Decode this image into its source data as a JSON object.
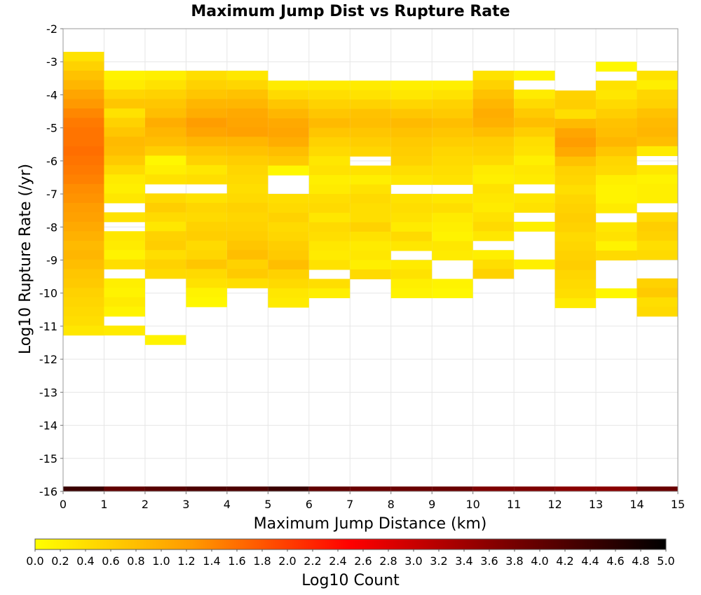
{
  "chart_data": {
    "type": "heatmap",
    "title": "Maximum Jump Dist vs Rupture Rate",
    "xlabel": "Maximum Jump Distance (km)",
    "ylabel": "Log10 Rupture Rate (/yr)",
    "xlim": [
      0,
      15
    ],
    "ylim": [
      -16,
      -2
    ],
    "x_ticks": [
      "0",
      "1",
      "2",
      "3",
      "4",
      "5",
      "6",
      "7",
      "8",
      "9",
      "10",
      "11",
      "12",
      "13",
      "14",
      "15"
    ],
    "y_ticks": [
      "-2",
      "-3",
      "-4",
      "-5",
      "-6",
      "-7",
      "-8",
      "-9",
      "-10",
      "-11",
      "-12",
      "-13",
      "-14",
      "-15",
      "-16"
    ],
    "grid": true,
    "bin_width_x": 1,
    "bin_height_y": 0.2857,
    "columns": [
      {
        "x": 0,
        "y_top": -2.7,
        "values": [
          0.35,
          0.55,
          0.75,
          0.9,
          1.1,
          1.25,
          1.4,
          1.5,
          1.55,
          1.55,
          1.6,
          1.55,
          1.5,
          1.45,
          1.35,
          1.3,
          1.2,
          1.15,
          1.05,
          0.95,
          0.85,
          0.9,
          0.8,
          0.7,
          0.65,
          0.55,
          0.5,
          0.45,
          0.4,
          0.3
        ]
      },
      {
        "x": 1,
        "y_top": -3.27,
        "values": [
          0.15,
          0.25,
          0.5,
          0.7,
          0.35,
          0.55,
          0.7,
          0.85,
          0.8,
          0.65,
          0.45,
          0.25,
          0.2,
          0.3,
          null,
          0.35,
          null,
          0.3,
          0.25,
          0.15,
          0.4,
          null,
          0.2,
          0.15,
          0.25,
          0.15,
          null,
          0.25
        ]
      },
      {
        "x": 2,
        "y_top": -3.27,
        "values": [
          0.2,
          0.35,
          0.55,
          0.7,
          0.8,
          1.0,
          0.9,
          0.8,
          0.6,
          0.1,
          0.2,
          0.35,
          null,
          0.45,
          0.6,
          0.45,
          0.3,
          0.55,
          0.6,
          0.4,
          0.55,
          0.45,
          null,
          null,
          null,
          null,
          null,
          null,
          0.15
        ]
      },
      {
        "x": 3,
        "y_top": -3.27,
        "values": [
          0.4,
          0.55,
          0.7,
          0.9,
          1.0,
          1.2,
          1.1,
          0.9,
          0.7,
          0.55,
          0.3,
          0.4,
          null,
          0.35,
          0.5,
          0.45,
          0.55,
          0.6,
          0.45,
          0.5,
          0.7,
          0.45,
          0.35,
          0.15,
          0.1
        ]
      },
      {
        "x": 4,
        "y_top": -3.27,
        "values": [
          0.3,
          0.5,
          0.75,
          0.9,
          1.05,
          1.1,
          1.15,
          0.9,
          0.75,
          0.6,
          0.5,
          0.45,
          0.4,
          0.45,
          0.55,
          0.5,
          0.55,
          0.6,
          0.7,
          0.8,
          0.55,
          0.65,
          0.4
        ]
      },
      {
        "x": 5,
        "y_top": -3.57,
        "values": [
          0.25,
          0.45,
          0.7,
          0.9,
          1.05,
          1.1,
          1.0,
          0.8,
          0.65,
          0.1,
          null,
          null,
          0.4,
          0.45,
          0.55,
          0.45,
          0.5,
          0.6,
          0.65,
          0.8,
          0.55,
          0.45,
          0.3,
          0.25
        ]
      },
      {
        "x": 6,
        "y_top": -3.57,
        "values": [
          0.25,
          0.4,
          0.55,
          0.7,
          0.85,
          0.7,
          0.55,
          0.45,
          0.3,
          0.35,
          0.2,
          0.25,
          0.4,
          0.45,
          0.3,
          0.45,
          0.4,
          0.3,
          0.25,
          0.35,
          null,
          0.4,
          0.2
        ]
      },
      {
        "x": 7,
        "y_top": -3.57,
        "values": [
          0.25,
          0.35,
          0.55,
          0.75,
          0.8,
          0.7,
          0.6,
          0.5,
          null,
          0.35,
          0.2,
          0.35,
          0.45,
          0.4,
          0.4,
          0.55,
          0.35,
          0.25,
          0.3,
          0.2,
          0.45
        ]
      },
      {
        "x": 8,
        "y_top": -3.57,
        "values": [
          0.2,
          0.3,
          0.5,
          0.7,
          0.85,
          0.75,
          0.65,
          0.6,
          0.55,
          0.4,
          0.3,
          null,
          0.35,
          0.4,
          0.35,
          0.25,
          0.45,
          0.3,
          null,
          0.25,
          0.35,
          0.2,
          0.15
        ]
      },
      {
        "x": 9,
        "y_top": -3.57,
        "values": [
          0.2,
          0.35,
          0.55,
          0.65,
          0.8,
          0.7,
          0.6,
          0.5,
          0.45,
          0.4,
          0.35,
          null,
          0.3,
          0.4,
          0.25,
          0.2,
          0.15,
          0.3,
          0.25,
          null,
          null,
          0.15,
          0.1
        ]
      },
      {
        "x": 10,
        "y_top": -3.27,
        "values": [
          0.35,
          0.55,
          0.75,
          0.9,
          1.0,
          0.95,
          0.8,
          0.6,
          0.55,
          0.45,
          0.25,
          0.2,
          0.35,
          0.3,
          0.25,
          0.35,
          0.45,
          0.3,
          null,
          0.2,
          0.4,
          0.55
        ]
      },
      {
        "x": 11,
        "y_top": -3.27,
        "values": [
          0.15,
          null,
          0.25,
          0.45,
          0.65,
          0.8,
          0.6,
          0.4,
          0.35,
          0.2,
          0.3,
          0.25,
          null,
          0.3,
          0.35,
          null,
          0.2,
          null,
          null,
          null,
          0.2
        ]
      },
      {
        "x": 12,
        "y_top": -3.87,
        "values": [
          0.55,
          0.6,
          0.4,
          0.85,
          1.1,
          1.2,
          1.05,
          0.75,
          0.55,
          0.5,
          0.4,
          0.5,
          0.55,
          0.6,
          0.55,
          0.45,
          0.5,
          0.55,
          0.6,
          0.5,
          0.45,
          0.4,
          0.25
        ]
      },
      {
        "x": 13,
        "y_top": -3.0,
        "values": [
          0.1,
          null,
          0.35,
          0.3,
          0.45,
          0.6,
          0.75,
          0.8,
          0.9,
          0.7,
          0.5,
          0.45,
          0.2,
          0.15,
          0.15,
          0.25,
          null,
          0.3,
          0.35,
          0.15,
          0.45,
          null,
          null,
          null,
          0.1
        ]
      },
      {
        "x": 14,
        "y_top": -3.27,
        "values": [
          0.35,
          0.2,
          0.5,
          0.55,
          0.75,
          0.85,
          0.9,
          0.8,
          0.25,
          null,
          0.3,
          0.15,
          0.2,
          0.2,
          null,
          0.45,
          0.6,
          0.55,
          0.4,
          0.45,
          null,
          null,
          0.55,
          0.65,
          0.4,
          0.45
        ]
      }
    ],
    "bottom_row": {
      "y": -16,
      "values": [
        4.4,
        4.0,
        4.1,
        4.2,
        4.2,
        4.4,
        4.0,
        3.9,
        3.9,
        3.9,
        3.7,
        3.7,
        3.6,
        3.6,
        3.9
      ]
    },
    "colorbar": {
      "label": "Log10 Count",
      "min": 0.0,
      "max": 5.0,
      "ticks": [
        "0.0",
        "0.2",
        "0.4",
        "0.6",
        "0.8",
        "1.0",
        "1.2",
        "1.4",
        "1.6",
        "1.8",
        "2.0",
        "2.2",
        "2.4",
        "2.6",
        "2.8",
        "3.0",
        "3.2",
        "3.4",
        "3.6",
        "3.8",
        "4.0",
        "4.2",
        "4.4",
        "4.6",
        "4.8",
        "5.0"
      ],
      "stops": [
        {
          "v": 0.0,
          "color": "#ffff00"
        },
        {
          "v": 1.25,
          "color": "#ff9900"
        },
        {
          "v": 2.5,
          "color": "#ff0000"
        },
        {
          "v": 3.75,
          "color": "#7a0000"
        },
        {
          "v": 5.0,
          "color": "#000000"
        }
      ]
    }
  }
}
